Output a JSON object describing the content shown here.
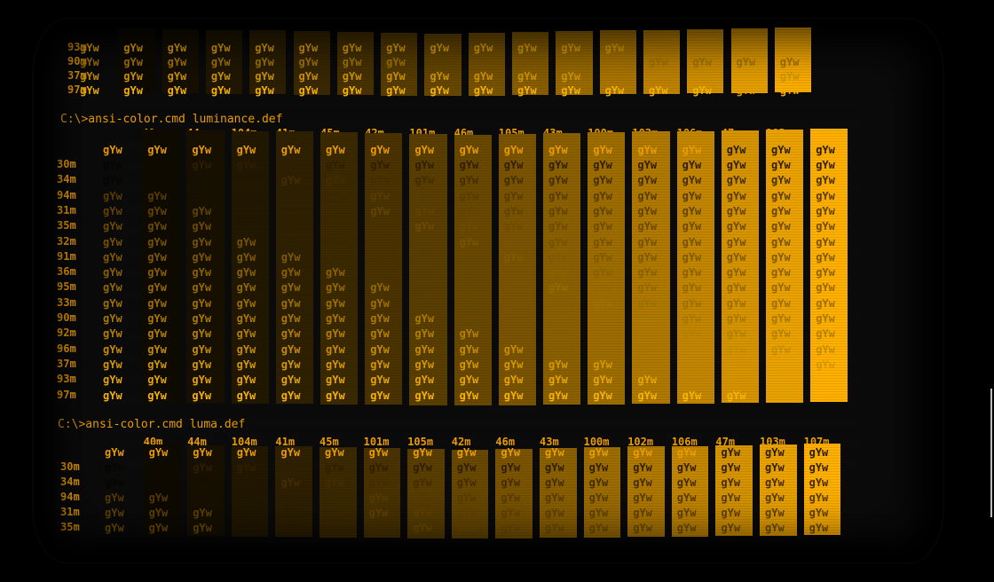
{
  "colors": {
    "background": "#000000",
    "phosphor": "#f0a000"
  },
  "section1": {
    "prompt": "",
    "col_headers": [],
    "row_labels": [
      "93m",
      "90m",
      "37m",
      "97m"
    ],
    "sample_text": "gYw"
  },
  "section2": {
    "prompt": "C:\\>ansi-color.cmd luminance.def",
    "col_headers": [
      "40m",
      "44m",
      "104m",
      "41m",
      "45m",
      "42m",
      "101m",
      "46m",
      "105m",
      "43m",
      "100m",
      "102m",
      "106m",
      "47m",
      "103m",
      "107m"
    ],
    "row_labels": [
      "30m",
      "34m",
      "94m",
      "31m",
      "35m",
      "32m",
      "91m",
      "36m",
      "95m",
      "33m",
      "90m",
      "92m",
      "96m",
      "37m",
      "93m",
      "97m"
    ],
    "sample_text": "gYw"
  },
  "section3": {
    "prompt": "C:\\>ansi-color.cmd luma.def",
    "col_headers": [
      "40m",
      "44m",
      "104m",
      "41m",
      "45m",
      "101m",
      "105m",
      "42m",
      "46m",
      "43m",
      "100m",
      "102m",
      "106m",
      "47m",
      "103m",
      "107m"
    ],
    "row_labels": [
      "30m",
      "34m",
      "94m",
      "31m",
      "35m"
    ],
    "sample_text": "gYw"
  }
}
